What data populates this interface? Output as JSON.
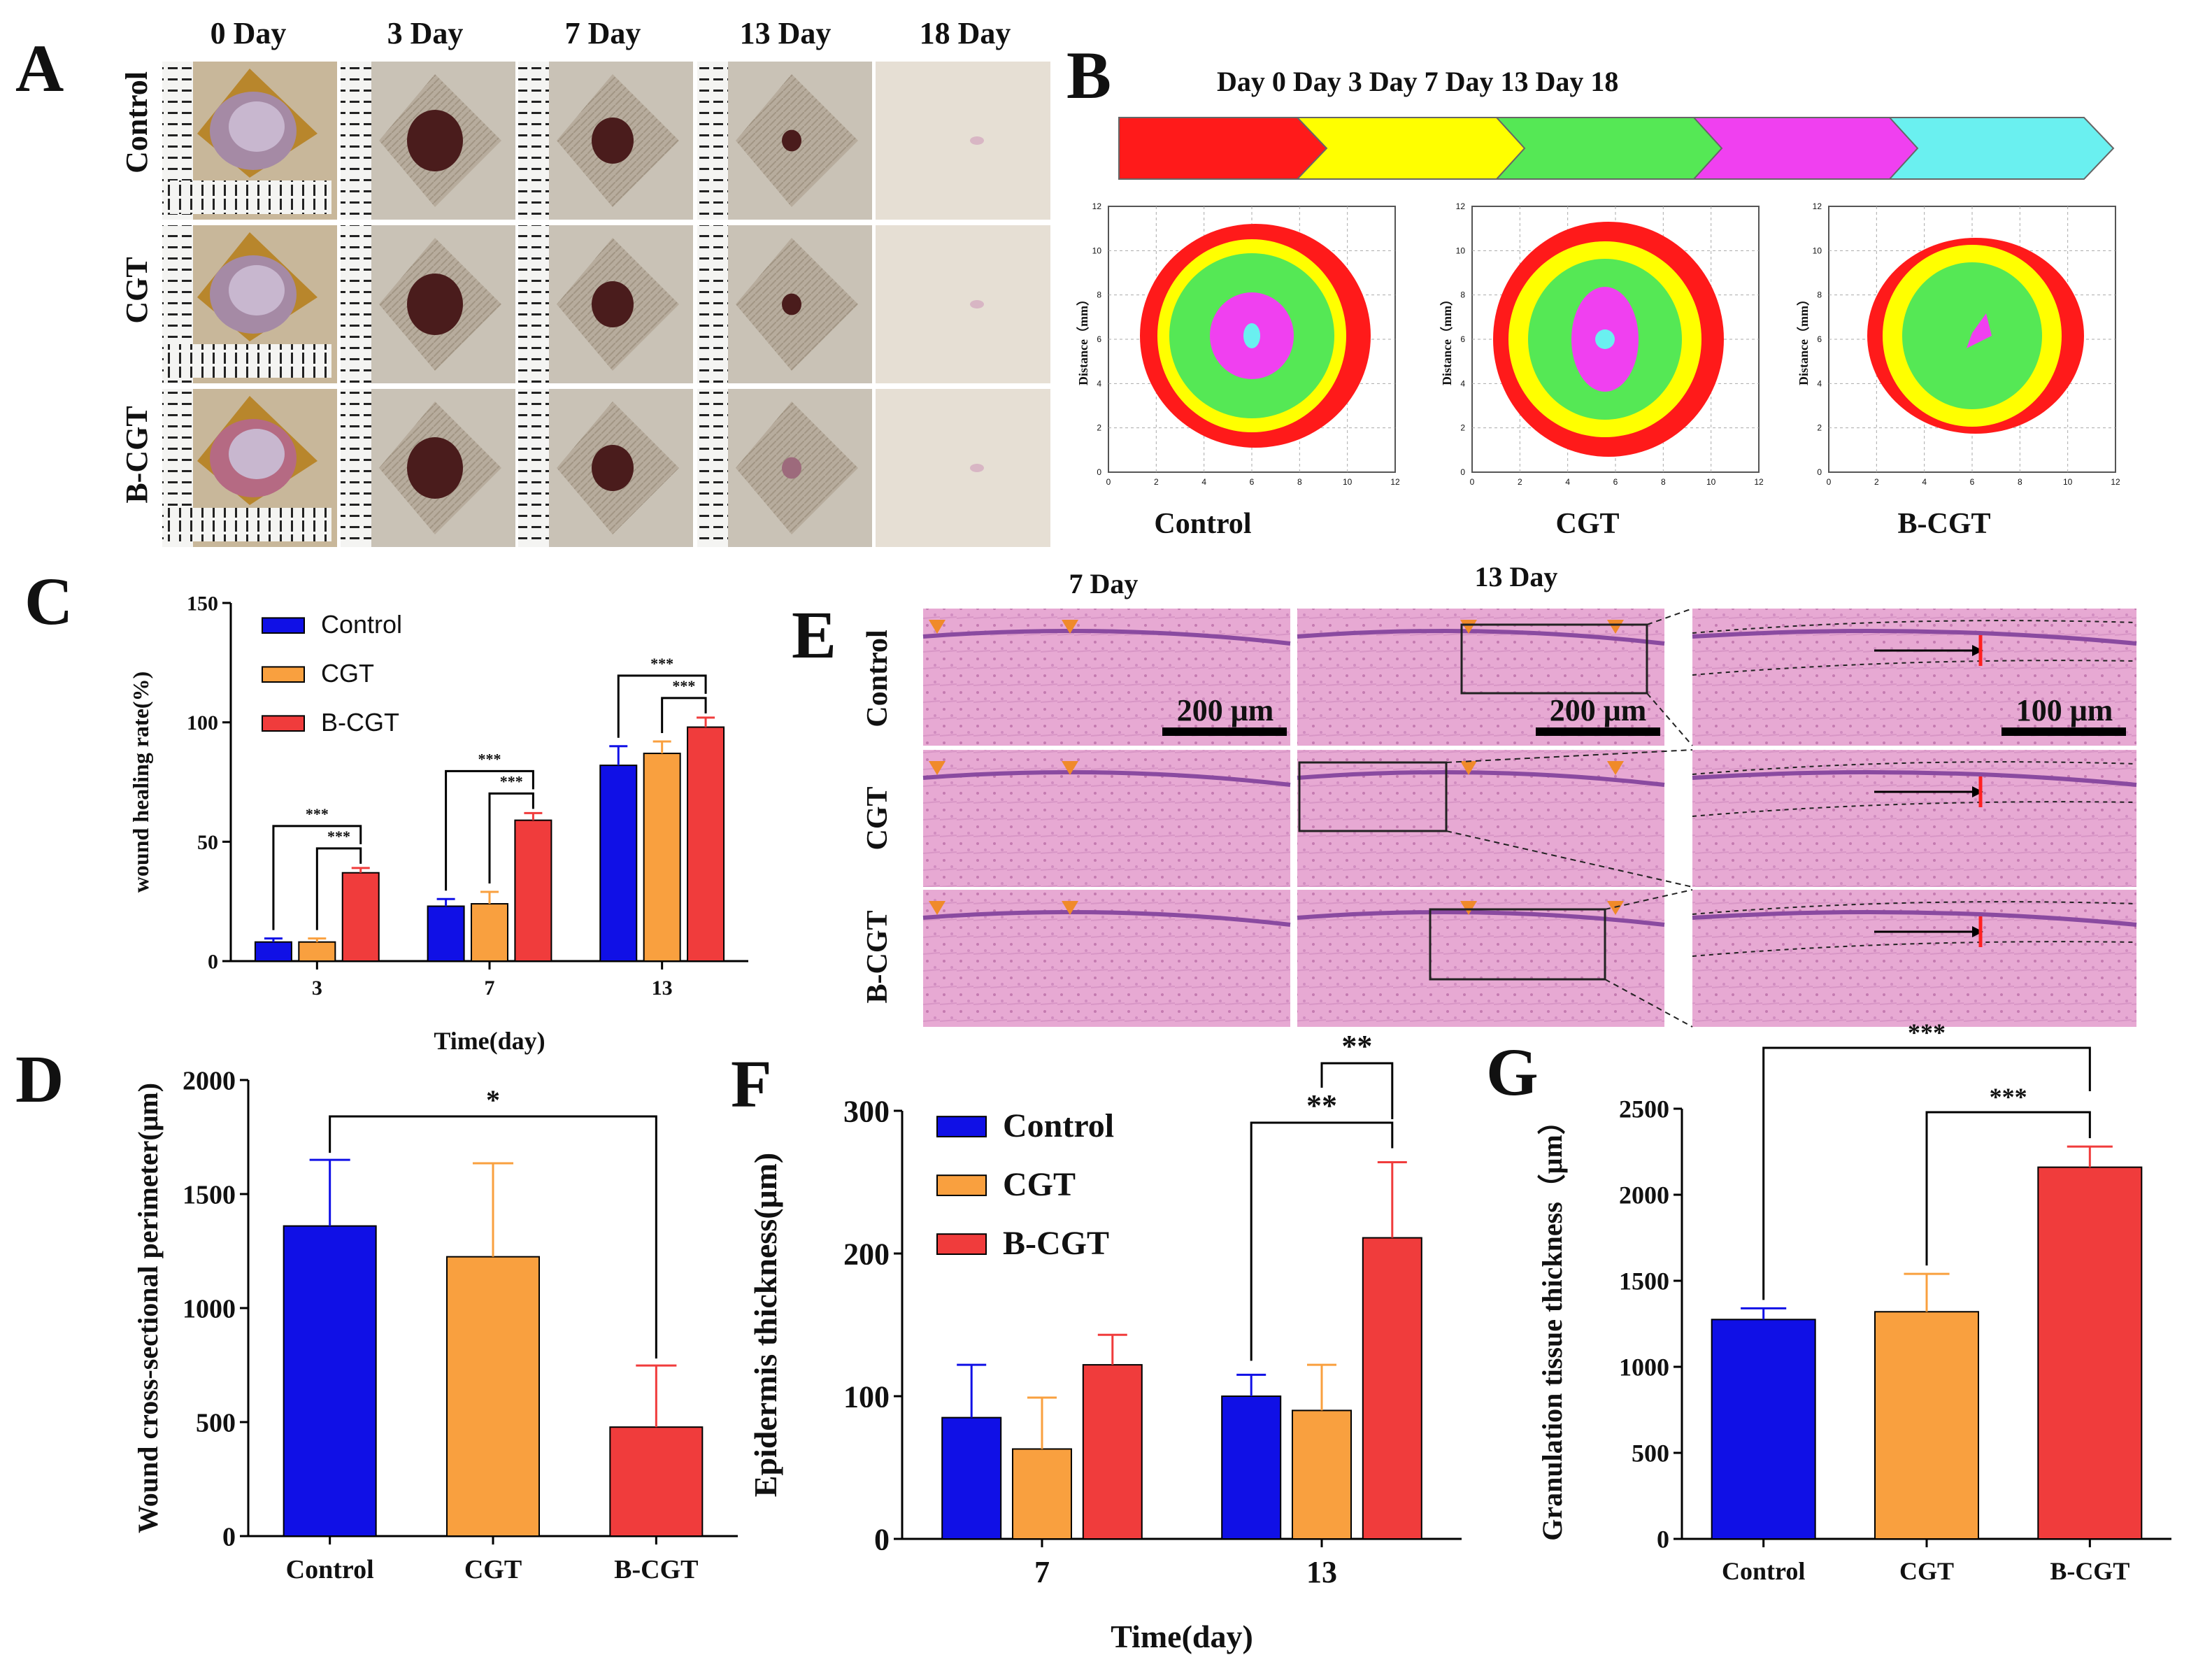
{
  "colors": {
    "control": "#1010e6",
    "cgt": "#f9a03f",
    "bcgt": "#f03c3c",
    "arrow_day0": "#ff1a1a",
    "arrow_day3": "#ffff00",
    "arrow_day7": "#55e855",
    "arrow_day13": "#f040f0",
    "arrow_day18": "#6af0f0",
    "he_stain": "#e7a6d2"
  },
  "panels": {
    "A": "A",
    "B": "B",
    "C": "C",
    "D": "D",
    "E": "E",
    "F": "F",
    "G": "G"
  },
  "panel_a": {
    "days": [
      "0 Day",
      "3 Day",
      "7 Day",
      "13 Day",
      "18 Day"
    ],
    "groups": [
      "Control",
      "CGT",
      "B-CGT"
    ]
  },
  "panel_b": {
    "timeline": "Day 0 Day 3 Day 7 Day 13 Day 18",
    "ylabel": "Distance（mm）",
    "groups": [
      "Control",
      "CGT",
      "B-CGT"
    ],
    "ticks": [
      "0",
      "2",
      "4",
      "6",
      "8",
      "10",
      "12"
    ]
  },
  "panel_e": {
    "days": [
      "7 Day",
      "13 Day"
    ],
    "groups": [
      "Control",
      "CGT",
      "B-CGT"
    ],
    "scalebars": [
      "200 μm",
      "200 μm",
      "100 μm"
    ]
  },
  "chart_data": [
    {
      "id": "C",
      "type": "bar",
      "ylabel": "wound healing rate(%)",
      "xlabel": "Time(day)",
      "categories": [
        "3",
        "7",
        "13"
      ],
      "ylim": [
        0,
        150
      ],
      "yticks": [
        "0",
        "50",
        "100",
        "150"
      ],
      "legend_position": "top-left",
      "series": [
        {
          "name": "Control",
          "values": [
            8,
            23,
            82
          ],
          "errors": [
            1.5,
            3,
            8
          ]
        },
        {
          "name": "CGT",
          "values": [
            8,
            24,
            87
          ],
          "errors": [
            1.5,
            5,
            5
          ]
        },
        {
          "name": "B-CGT",
          "values": [
            37,
            59,
            98
          ],
          "errors": [
            2,
            3,
            4
          ]
        }
      ],
      "significance": [
        "***",
        "***",
        "***",
        "***",
        "***",
        "***"
      ]
    },
    {
      "id": "D",
      "type": "bar",
      "ylabel": "Wound cross-sectional perimeter(μm)",
      "xlabel": "",
      "categories": [
        "Control",
        "CGT",
        "B-CGT"
      ],
      "values": [
        1360,
        1225,
        478
      ],
      "errors": [
        290,
        410,
        270
      ],
      "ylim": [
        0,
        2000
      ],
      "yticks": [
        "0",
        "500",
        "1000",
        "1500",
        "2000"
      ],
      "significance": [
        "*"
      ]
    },
    {
      "id": "F",
      "type": "bar",
      "ylabel": "Epidermis thickness(μm)",
      "xlabel": "Time(day)",
      "categories": [
        "7",
        "13"
      ],
      "ylim": [
        0,
        300
      ],
      "yticks": [
        "0",
        "100",
        "200",
        "300"
      ],
      "legend_position": "top-left",
      "series": [
        {
          "name": "Control",
          "values": [
            85,
            100
          ],
          "errors": [
            37,
            15
          ]
        },
        {
          "name": "CGT",
          "values": [
            63,
            90
          ],
          "errors": [
            36,
            32
          ]
        },
        {
          "name": "B-CGT",
          "values": [
            122,
            211
          ],
          "errors": [
            21,
            53
          ]
        }
      ],
      "significance": [
        "**",
        "**"
      ]
    },
    {
      "id": "G",
      "type": "bar",
      "ylabel": "Granulation tissue thickness（μm）",
      "xlabel": "",
      "categories": [
        "Control",
        "CGT",
        "B-CGT"
      ],
      "values": [
        1275,
        1320,
        2160
      ],
      "errors": [
        65,
        220,
        120
      ],
      "ylim": [
        0,
        2500
      ],
      "yticks": [
        "0",
        "500",
        "1000",
        "1500",
        "2000",
        "2500"
      ],
      "significance": [
        "***",
        "***"
      ]
    }
  ]
}
